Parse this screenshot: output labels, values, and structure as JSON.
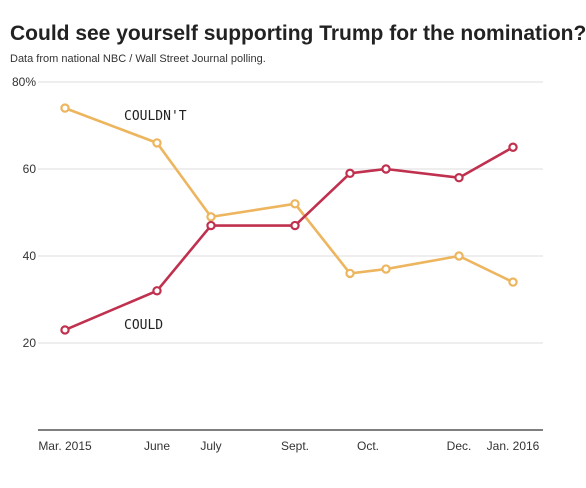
{
  "title": "Could see yourself supporting Trump for the nomination?",
  "subtitle": "Data from national NBC / Wall Street Journal polling.",
  "colors": {
    "could": "#c0304f",
    "couldnt": "#edb55e",
    "grid": "#dddddd",
    "axis": "#333333"
  },
  "chart_data": {
    "type": "line",
    "x": [
      "Mar. 2015",
      "June",
      "July",
      "Sept.",
      "Oct.",
      "Oct.",
      "Dec.",
      "Jan. 2016"
    ],
    "x_tick_labels": [
      "Mar. 2015",
      "June",
      "July",
      "Sept.",
      "Oct.",
      "Dec.",
      "Jan. 2016"
    ],
    "y_tick_labels": [
      "20",
      "40",
      "60",
      "80%"
    ],
    "y_ticks": [
      20,
      40,
      60,
      80
    ],
    "ylim": [
      0,
      80
    ],
    "grid": true,
    "series": [
      {
        "name": "COULDN'T",
        "values": [
          74,
          66,
          49,
          52,
          36,
          37,
          40,
          34
        ]
      },
      {
        "name": "COULD",
        "values": [
          23,
          32,
          47,
          47,
          59,
          60,
          58,
          65
        ]
      }
    ]
  }
}
